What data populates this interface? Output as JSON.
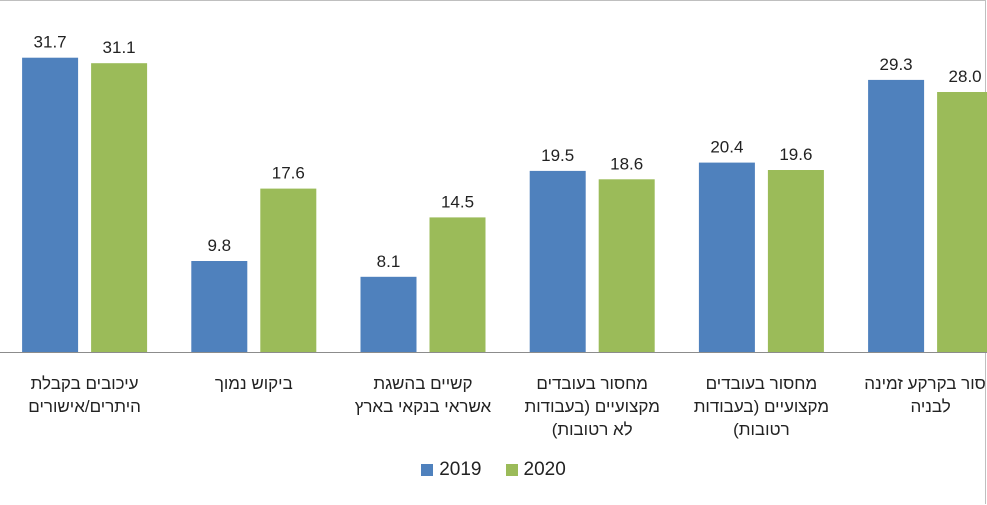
{
  "chart_data": {
    "type": "bar",
    "title": "",
    "xlabel": "",
    "ylabel": "",
    "ylim": [
      0,
      35
    ],
    "grid": false,
    "legend_position": "bottom",
    "categories": [
      [
        "עיכובים בקבלת",
        "היתרים/אישורים"
      ],
      [
        "ביקוש נמוך"
      ],
      [
        "קשיים בהשגת",
        "אשראי בנקאי בארץ"
      ],
      [
        "מחסור בעובדים",
        "מקצועיים (בעבודות",
        "לא רטובות)"
      ],
      [
        "מחסור בעובדים",
        "מקצועיים (בעבודות",
        "רטובות)"
      ],
      [
        "חסור בקרקע זמינה",
        "לבניה"
      ]
    ],
    "series": [
      {
        "name": "2019",
        "color": "#4f81bd",
        "values": [
          31.7,
          9.8,
          8.1,
          19.5,
          20.4,
          29.3
        ],
        "labels": [
          "31.7",
          "9.8",
          "8.1",
          "19.5",
          "20.4",
          "29.3"
        ]
      },
      {
        "name": "2020",
        "color": "#9bbb59",
        "values": [
          31.1,
          17.6,
          14.5,
          18.6,
          19.6,
          28.0
        ],
        "labels": [
          "31.1",
          "17.6",
          "14.5",
          "18.6",
          "19.6",
          "28.0"
        ]
      }
    ]
  }
}
